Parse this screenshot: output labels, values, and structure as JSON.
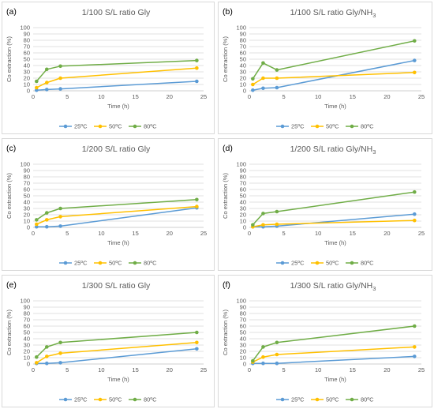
{
  "colors": {
    "25ºC": "#5b9bd5",
    "50ºC": "#ffc000",
    "80ºC": "#70ad47"
  },
  "chart_data": [
    {
      "letter": "(a)",
      "type": "line",
      "title": "1/100 S/L ratio Gly",
      "title_suffix": "",
      "xlabel": "Time (h)",
      "ylabel": "Co extraction (%)",
      "xlim": [
        0,
        25
      ],
      "ylim": [
        0,
        100
      ],
      "xticks": [
        0,
        5,
        10,
        15,
        20,
        25
      ],
      "yticks": [
        0,
        10,
        20,
        30,
        40,
        50,
        60,
        70,
        80,
        90,
        100
      ],
      "x": [
        0.5,
        2,
        4,
        24
      ],
      "legend_position": "bottom",
      "series": [
        {
          "name": "25ºC",
          "values": [
            1,
            2,
            3,
            15
          ]
        },
        {
          "name": "50ºC",
          "values": [
            5,
            13,
            20,
            36
          ]
        },
        {
          "name": "80ºC",
          "values": [
            15,
            34,
            39,
            48
          ]
        }
      ]
    },
    {
      "letter": "(b)",
      "type": "line",
      "title": "1/100 S/L ratio Gly/NH",
      "title_suffix": "3",
      "xlabel": "Time (h)",
      "ylabel": "Co extraction (%)",
      "xlim": [
        0,
        25
      ],
      "ylim": [
        0,
        100
      ],
      "xticks": [
        0,
        5,
        10,
        15,
        20,
        25
      ],
      "yticks": [
        0,
        10,
        20,
        30,
        40,
        50,
        60,
        70,
        80,
        90,
        100
      ],
      "x": [
        0.5,
        2,
        4,
        24
      ],
      "legend_position": "bottom",
      "series": [
        {
          "name": "25ºC",
          "values": [
            1,
            4,
            5,
            48
          ]
        },
        {
          "name": "50ºC",
          "values": [
            10,
            20,
            20,
            29
          ]
        },
        {
          "name": "80ºC",
          "values": [
            19,
            44,
            33,
            79
          ]
        }
      ]
    },
    {
      "letter": "(c)",
      "type": "line",
      "title": "1/200 S/L ratio Gly",
      "title_suffix": "",
      "xlabel": "Time (h)",
      "ylabel": "Co extraction (%)",
      "xlim": [
        0,
        25
      ],
      "ylim": [
        0,
        100
      ],
      "xticks": [
        0,
        5,
        10,
        15,
        20,
        25
      ],
      "yticks": [
        0,
        10,
        20,
        30,
        40,
        50,
        60,
        70,
        80,
        90,
        100
      ],
      "x": [
        0.5,
        2,
        4,
        24
      ],
      "legend_position": "bottom",
      "series": [
        {
          "name": "25ºC",
          "values": [
            1,
            1,
            2,
            31
          ]
        },
        {
          "name": "50ºC",
          "values": [
            5,
            12,
            17,
            33
          ]
        },
        {
          "name": "80ºC",
          "values": [
            12,
            23,
            30,
            44
          ]
        }
      ]
    },
    {
      "letter": "(d)",
      "type": "line",
      "title": "1/200 S/L ratio Gly/NH",
      "title_suffix": "3",
      "xlabel": "Time (h)",
      "ylabel": "Co extraction (%)",
      "xlim": [
        0,
        25
      ],
      "ylim": [
        0,
        100
      ],
      "xticks": [
        0,
        5,
        10,
        15,
        20,
        25
      ],
      "yticks": [
        0,
        10,
        20,
        30,
        40,
        50,
        60,
        70,
        80,
        90,
        100
      ],
      "x": [
        0.5,
        2,
        4,
        24
      ],
      "legend_position": "bottom",
      "series": [
        {
          "name": "25ºC",
          "values": [
            1,
            1,
            2,
            21
          ]
        },
        {
          "name": "50ºC",
          "values": [
            1,
            4,
            5,
            11
          ]
        },
        {
          "name": "80ºC",
          "values": [
            4,
            22,
            25,
            56
          ]
        }
      ]
    },
    {
      "letter": "(e)",
      "type": "line",
      "title": "1/300 S/L ratio Gly",
      "title_suffix": "",
      "xlabel": "Time (h)",
      "ylabel": "Co extraction (%)",
      "xlim": [
        0,
        25
      ],
      "ylim": [
        0,
        100
      ],
      "xticks": [
        0,
        5,
        10,
        15,
        20,
        25
      ],
      "yticks": [
        0,
        10,
        20,
        30,
        40,
        50,
        60,
        70,
        80,
        90,
        100
      ],
      "x": [
        0.5,
        2,
        4,
        24
      ],
      "legend_position": "bottom",
      "series": [
        {
          "name": "25ºC",
          "values": [
            1,
            1,
            2,
            24
          ]
        },
        {
          "name": "50ºC",
          "values": [
            2,
            12,
            17,
            34
          ]
        },
        {
          "name": "80ºC",
          "values": [
            11,
            27,
            34,
            50
          ]
        }
      ]
    },
    {
      "letter": "(f)",
      "type": "line",
      "title": "1/300 S/L ratio Gly/NH",
      "title_suffix": "3",
      "xlabel": "Time (h)",
      "ylabel": "Co extraction (%)",
      "xlim": [
        0,
        25
      ],
      "ylim": [
        0,
        100
      ],
      "xticks": [
        0,
        5,
        10,
        15,
        20,
        25
      ],
      "yticks": [
        0,
        10,
        20,
        30,
        40,
        50,
        60,
        70,
        80,
        90,
        100
      ],
      "x": [
        0.5,
        2,
        4,
        24
      ],
      "legend_position": "bottom",
      "series": [
        {
          "name": "25ºC",
          "values": [
            1,
            1,
            1,
            12
          ]
        },
        {
          "name": "50ºC",
          "values": [
            3,
            11,
            15,
            27
          ]
        },
        {
          "name": "80ºC",
          "values": [
            5,
            27,
            34,
            60
          ]
        }
      ]
    }
  ]
}
